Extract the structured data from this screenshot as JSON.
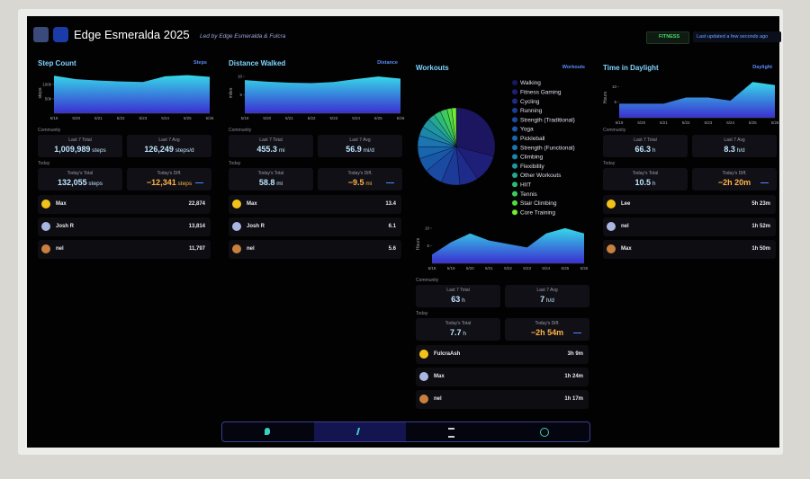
{
  "header": {
    "title": "Edge Esmeralda 2025",
    "subtitle": "Led by Edge Esmeralda & Fulcra",
    "badge": "FITNESS",
    "updated": "Last updated a few seconds ago"
  },
  "panels": [
    {
      "title": "Step Count",
      "tag": "Steps",
      "chart": {
        "type": "area",
        "y_label": "steps",
        "x": [
          "5/19",
          "5/20",
          "5/21",
          "5/22",
          "5/23",
          "5/24",
          "5/25",
          "5/26"
        ],
        "values": [
          130000,
          118000,
          113000,
          110000,
          108000,
          128000,
          132000,
          126000
        ],
        "ylim": [
          0,
          140000
        ],
        "yticks": [
          {
            "value": 50000,
            "label": "50k"
          },
          {
            "value": 100000,
            "label": "100k"
          }
        ]
      },
      "community": "Community",
      "stats": [
        {
          "label": "Last 7 Total",
          "value": "1,009,989",
          "unit": "steps"
        },
        {
          "label": "Last 7 Avg",
          "value": "126,249",
          "unit": "steps/d"
        }
      ],
      "today": "Today",
      "today_stats": [
        {
          "label": "Today's Total",
          "value": "132,055",
          "unit": "steps"
        },
        {
          "label": "Today's Diff.",
          "value": "−12,341",
          "unit": "steps"
        }
      ],
      "leaders": [
        {
          "name": "Max",
          "value": "22,874"
        },
        {
          "name": "Josh R",
          "value": "13,814"
        },
        {
          "name": "nel",
          "value": "11,797"
        }
      ]
    },
    {
      "title": "Distance Walked",
      "tag": "Distance",
      "chart": {
        "type": "area",
        "y_label": "miles",
        "x": [
          "5/19",
          "5/20",
          "5/21",
          "5/22",
          "5/23",
          "5/24",
          "5/25",
          "5/26"
        ],
        "values": [
          9,
          8.6,
          8.3,
          8.2,
          8.5,
          9.3,
          10,
          9.4
        ],
        "ylim": [
          0,
          11
        ],
        "yticks": [
          5,
          10
        ]
      },
      "community": "Community",
      "stats": [
        {
          "label": "Last 7 Total",
          "value": "455.3",
          "unit": "mi"
        },
        {
          "label": "Last 7 Avg",
          "value": "56.9",
          "unit": "mi/d"
        }
      ],
      "today": "Today",
      "today_stats": [
        {
          "label": "Today's Total",
          "value": "58.8",
          "unit": "mi"
        },
        {
          "label": "Today's Diff.",
          "value": "−9.5",
          "unit": "mi"
        }
      ],
      "leaders": [
        {
          "name": "Max",
          "value": "13.4"
        },
        {
          "name": "Josh R",
          "value": "6.1"
        },
        {
          "name": "nel",
          "value": "5.6"
        }
      ]
    },
    {
      "title": "Workouts",
      "tag": "Workouts",
      "pie": {
        "type": "pie",
        "categories": [
          "Walking",
          "Fitness Gaming",
          "Cycling",
          "Running",
          "Strength (Traditional)",
          "Yoga",
          "Pickleball",
          "Strength (Functional)",
          "Climbing",
          "Flexibility",
          "Other Workouts",
          "HIIT",
          "Tennis",
          "Stair Climbing",
          "Core Training"
        ],
        "values": [
          30,
          12,
          8,
          8,
          8,
          6,
          5,
          5,
          4,
          4,
          3,
          3,
          3,
          2,
          2
        ],
        "colors": [
          "#1c1660",
          "#1d1f78",
          "#1e2b8a",
          "#1c3a98",
          "#1a4aa2",
          "#1858a8",
          "#1866ae",
          "#1a75b0",
          "#1c86a8",
          "#1f97a0",
          "#25a890",
          "#2eba78",
          "#3ccb5c",
          "#52dc42",
          "#72ee30"
        ]
      },
      "chart": {
        "type": "area",
        "y_label": "Hours",
        "x": [
          "5/18",
          "5/19",
          "5/20",
          "5/21",
          "5/22",
          "5/23",
          "5/24",
          "5/25",
          "5/26"
        ],
        "values": [
          2.5,
          6,
          8.5,
          6.5,
          5.5,
          4.5,
          8.5,
          10,
          8.5
        ],
        "ylim": [
          0,
          11
        ],
        "yticks": [
          5,
          10
        ]
      },
      "community": "Community",
      "stats": [
        {
          "label": "Last 7 Total",
          "value": "63",
          "unit": "h"
        },
        {
          "label": "Last 7 Avg",
          "value": "7",
          "unit": "h/d"
        }
      ],
      "today": "Today",
      "today_stats": [
        {
          "label": "Today's Total",
          "value": "7.7",
          "unit": "h"
        },
        {
          "label": "Today's Diff.",
          "value": "−2h 54m",
          "unit": ""
        }
      ],
      "leaders": [
        {
          "name": "FulcraAsh",
          "value": "3h 9m"
        },
        {
          "name": "Max",
          "value": "1h 24m"
        },
        {
          "name": "nel",
          "value": "1h 17m"
        }
      ]
    },
    {
      "title": "Time in Daylight",
      "tag": "Daylight",
      "chart": {
        "type": "area",
        "y_label": "Hours",
        "x": [
          "5/19",
          "5/20",
          "5/21",
          "5/22",
          "5/23",
          "5/24",
          "5/25",
          "5/26"
        ],
        "values": [
          4.5,
          4.5,
          4.5,
          6.5,
          6.5,
          5.5,
          11.5,
          10.5
        ],
        "ylim": [
          0,
          13
        ],
        "yticks": [
          5,
          10
        ]
      },
      "community": "Community",
      "stats": [
        {
          "label": "Last 7 Total",
          "value": "66.3",
          "unit": "h"
        },
        {
          "label": "Last 7 Avg",
          "value": "8.3",
          "unit": "h/d"
        }
      ],
      "today": "Today",
      "today_stats": [
        {
          "label": "Today's Total",
          "value": "10.5",
          "unit": "h"
        },
        {
          "label": "Today's Diff.",
          "value": "−2h 20m",
          "unit": ""
        }
      ],
      "leaders": [
        {
          "name": "Lee",
          "value": "5h 23m"
        },
        {
          "name": "nel",
          "value": "1h 52m"
        },
        {
          "name": "Max",
          "value": "1h 50m"
        }
      ]
    }
  ]
}
